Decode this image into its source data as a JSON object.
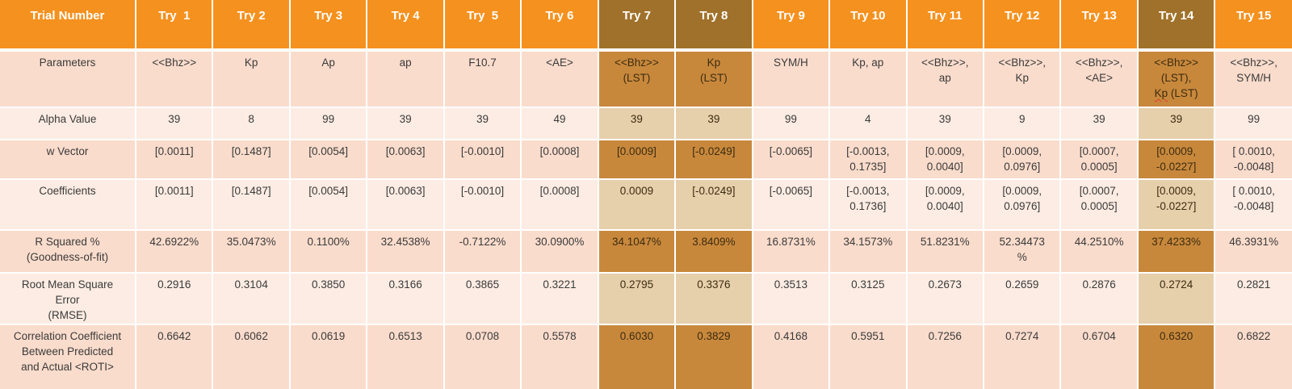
{
  "chart_data": {
    "type": "table",
    "title": "Regression trial comparison table",
    "corner_header": "Trial Number",
    "columns": [
      "Try  1",
      "Try 2",
      "Try 3",
      "Try 4",
      "Try  5",
      "Try 6",
      "Try 7",
      "Try 8",
      "Try 9",
      "Try 10",
      "Try 11",
      "Try 12",
      "Try 13",
      "Try 14",
      "Try 15"
    ],
    "highlighted_columns": [
      "Try 7",
      "Try 8",
      "Try 14"
    ],
    "rows": [
      {
        "label": "Parameters",
        "values": [
          "<<Bhz>>",
          "Kp",
          "Ap",
          "ap",
          "F10.7",
          "<AE>",
          "<<Bhz>>\n(LST)",
          "Kp\n(LST)",
          "SYM/H",
          "Kp, ap",
          "<<Bhz>>,\nap",
          "<<Bhz>>,\nKp",
          "<<Bhz>>,\n<AE>",
          "<<Bhz>>\n(LST),\nKp (LST)",
          "<<Bhz>>,\nSYM/H"
        ]
      },
      {
        "label": "Alpha Value",
        "values": [
          "39",
          "8",
          "99",
          "39",
          "39",
          "49",
          "39",
          "39",
          "99",
          "4",
          "39",
          "9",
          "39",
          "39",
          "99"
        ]
      },
      {
        "label": "w Vector",
        "values": [
          "[0.0011]",
          "[0.1487]",
          "[0.0054]",
          "[0.0063]",
          "[-0.0010]",
          "[0.0008]",
          "[0.0009]",
          "[-0.0249]",
          "[-0.0065]",
          "[-0.0013,\n0.1735]",
          "[0.0009,\n0.0040]",
          "[0.0009,\n0.0976]",
          "[0.0007,\n0.0005]",
          "[0.0009,\n-0.0227]",
          "[ 0.0010,\n-0.0048]"
        ]
      },
      {
        "label": "Coefficients",
        "values": [
          "[0.0011]",
          "[0.1487]",
          "[0.0054]",
          "[0.0063]",
          "[-0.0010]",
          "[0.0008]",
          "0.0009",
          "[-0.0249]",
          "[-0.0065]",
          "[-0.0013,\n0.1736]",
          "[0.0009,\n0.0040]",
          "[0.0009,\n0.0976]",
          "[0.0007,\n0.0005]",
          "[0.0009,\n-0.0227]",
          "[ 0.0010,\n-0.0048]"
        ]
      },
      {
        "label": "R Squared %\n(Goodness-of-fit)",
        "values": [
          "42.6922%",
          "35.0473%",
          "0.1100%",
          "32.4538%",
          "-0.7122%",
          "30.0900%",
          "34.1047%",
          "3.8409%",
          "16.8731%",
          "34.1573%",
          "51.8231%",
          "52.34473\n%",
          "44.2510%",
          "37.4233%",
          "46.3931%"
        ]
      },
      {
        "label": "Root Mean Square\nError\n(RMSE)",
        "values": [
          "0.2916",
          "0.3104",
          "0.3850",
          "0.3166",
          "0.3865",
          "0.3221",
          "0.2795",
          "0.3376",
          "0.3513",
          "0.3125",
          "0.2673",
          "0.2659",
          "0.2876",
          "0.2724",
          "0.2821"
        ]
      },
      {
        "label": "Correlation Coefficient\nBetween Predicted\nand Actual <ROTI>",
        "values": [
          "0.6642",
          "0.6062",
          "0.0619",
          "0.6513",
          "0.0708",
          "0.5578",
          "0.6030",
          "0.3829",
          "0.4168",
          "0.5951",
          "0.7256",
          "0.7274",
          "0.6704",
          "0.6320",
          "0.6822"
        ]
      }
    ],
    "spellcheck_annotation": {
      "row_label": "Parameters",
      "column": "Try 14",
      "word": "Kp"
    },
    "layout_hints": {
      "grid": "white gridlines",
      "banded_rows": true,
      "legend_position": "none"
    },
    "colors": {
      "header_orange": "#f5911e",
      "header_highlight_brown": "#a0712a",
      "band_dark_peach": "#fadccc",
      "band_light_peach": "#fdece3",
      "highlight_dark_tan": "#c8883c",
      "highlight_light_tan": "#e6cfab",
      "body_text": "#3a3a3a",
      "header_text": "#ffffff",
      "spellcheck_red": "#e03c31"
    }
  }
}
